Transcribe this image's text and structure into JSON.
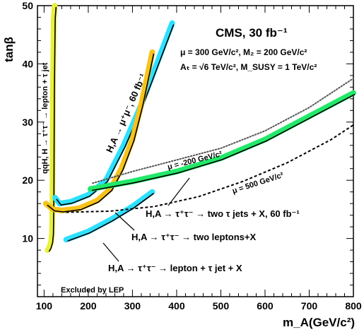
{
  "chart_data": {
    "type": "line",
    "title": "CMS, 30 fb⁻¹",
    "parameters": [
      "μ = 300 GeV/c², M₂ = 200 GeV/c²",
      "Aₜ = √6 TeV/c², M_SUSY = 1 TeV/c²"
    ],
    "xlabel": "m_A(GeV/c²)",
    "ylabel": "tanβ",
    "xlim": [
      85,
      800
    ],
    "ylim": [
      0,
      50
    ],
    "x_ticks": [
      100,
      200,
      300,
      400,
      500,
      600,
      700,
      800
    ],
    "y_ticks": [
      10,
      20,
      30,
      40,
      50
    ],
    "grid": false,
    "series": [
      {
        "id": "tautau_lepton_jet",
        "name": "qqH, H → τ⁺τ⁻ → lepton + τ jet",
        "color": "#e8f03c",
        "x": [
          108,
          112,
          116,
          118,
          119,
          120,
          122,
          124
        ],
        "y": [
          8,
          8.5,
          9.5,
          11,
          18,
          35,
          48,
          50
        ]
      },
      {
        "id": "mumu_60",
        "name": "H,A → μ⁺μ⁻, 60 fb⁻¹",
        "color": "#2ee0ff",
        "x": [
          125,
          135,
          160,
          200,
          240,
          280,
          320,
          360,
          390
        ],
        "y": [
          17,
          16,
          16.3,
          17.5,
          20,
          26,
          33,
          41,
          47
        ]
      },
      {
        "id": "tautau_two_leptons",
        "name": "H,A → τ⁺τ⁻ → two leptons+X",
        "color": "#f7c21a",
        "x": [
          104,
          120,
          140,
          180,
          220,
          250,
          275,
          300,
          320,
          345
        ],
        "y": [
          16,
          15,
          14.8,
          15.2,
          16.5,
          18.5,
          22,
          27,
          33,
          42
        ]
      },
      {
        "id": "tautau_two_taujets_60",
        "name": "H,A → τ⁺τ⁻ → two τ jets + X, 60 fb⁻¹",
        "color": "#22e869",
        "x": [
          205,
          300,
          400,
          500,
          600,
          700,
          800
        ],
        "y": [
          18.5,
          19.8,
          21.5,
          23.8,
          27,
          31,
          35
        ]
      },
      {
        "id": "tautau_lepton_taujet",
        "name": "H,A → τ⁺τ⁻ → lepton + τ jet + X",
        "color": "#2ee0ff",
        "x": [
          150,
          200,
          250,
          300,
          345
        ],
        "y": [
          9.8,
          11.2,
          13.2,
          15.5,
          18
        ]
      },
      {
        "id": "mu_minus_200",
        "name": "μ = -200 GeV/c²",
        "color": "#555555",
        "style": "dotted",
        "x": [
          210,
          300,
          400,
          500,
          600,
          700,
          800
        ],
        "y": [
          19.5,
          21.5,
          23.5,
          25.5,
          28.5,
          32.5,
          37.5
        ]
      },
      {
        "id": "mu_500",
        "name": "μ = 500 GeV/c²",
        "color": "#000000",
        "style": "dashed",
        "x": [
          150,
          250,
          350,
          450,
          550,
          650,
          750,
          800
        ],
        "y": [
          14.5,
          14.7,
          15.5,
          17.2,
          19.8,
          23,
          27,
          29.5
        ]
      }
    ],
    "annotations": [
      "Excluded by LEP"
    ]
  },
  "labels": {
    "header": "CMS, 30 fb⁻¹",
    "param1": "μ = 300 GeV/c², M₂ = 200 GeV/c²",
    "param2": "Aₜ = √6 TeV/c², M_SUSY = 1 TeV/c²",
    "mumu": "H,A → μ⁺μ⁻, 60 fb⁻¹",
    "qqh": "qqH, H → τ⁺τ⁻ → lepton + τ jet",
    "mu_minus": "μ = -200 GeV/c²",
    "mu_500": "μ = 500 GeV/c²",
    "two_taujets": "H,A → τ⁺τ⁻ → two τ jets + X, 60 fb⁻¹",
    "two_leptons": "H,A → τ⁺τ⁻ → two leptons+X",
    "lepton_taujet": "H,A → τ⁺τ⁻ → lepton + τ jet + X",
    "lep": "Excluded by LEP",
    "xlabel": "m_A(GeV/c²)",
    "ylabel": "tanβ"
  }
}
